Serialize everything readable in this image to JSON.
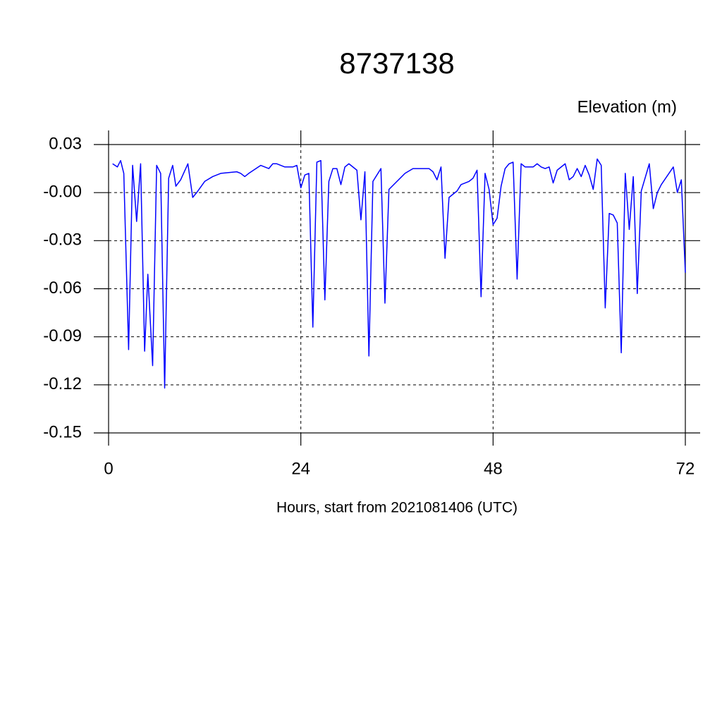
{
  "chart_data": {
    "type": "line",
    "title": "8737138",
    "subtitle": "Elevation (m)",
    "x_label": "Hours, start from 2021081406 (UTC)",
    "xlim": [
      0,
      72
    ],
    "ylim": [
      -0.15,
      0.03
    ],
    "xticks": [
      0,
      24,
      48,
      72
    ],
    "yticks": [
      0.03,
      {
        "value": 0,
        "label": "-0.00"
      },
      -0.03,
      -0.06,
      -0.09,
      -0.12,
      -0.15
    ],
    "grid": true,
    "x": [
      0.5,
      1.1,
      1.5,
      1.9,
      2.5,
      3.0,
      3.5,
      4.0,
      4.5,
      4.9,
      5.5,
      6.0,
      6.5,
      7.0,
      7.5,
      8.0,
      8.4,
      9.0,
      9.9,
      10.5,
      11.0,
      12.0,
      13.0,
      14.0,
      16.0,
      16.5,
      17.0,
      17.5,
      19.0,
      20.0,
      20.5,
      21.0,
      22.0,
      23.0,
      23.5,
      24.0,
      24.5,
      25.0,
      25.5,
      26.0,
      26.5,
      27.0,
      27.5,
      28.0,
      28.5,
      29.0,
      29.5,
      30.0,
      31.0,
      31.5,
      32.0,
      32.5,
      33.0,
      34.0,
      34.5,
      35.0,
      36.0,
      37.0,
      38.0,
      40.0,
      40.5,
      41.0,
      41.5,
      42.0,
      42.5,
      43.5,
      44.0,
      45.0,
      45.5,
      46.0,
      46.5,
      47.0,
      47.5,
      48.0,
      48.5,
      49.0,
      49.5,
      50.0,
      50.5,
      51.0,
      51.5,
      52.0,
      53.0,
      53.5,
      54.0,
      54.5,
      55.0,
      55.5,
      56.0,
      57.0,
      57.5,
      58.0,
      58.5,
      59.0,
      59.5,
      60.0,
      60.5,
      61.0,
      61.5,
      62.0,
      62.5,
      63.0,
      63.5,
      64.0,
      64.5,
      65.0,
      65.5,
      66.0,
      66.5,
      67.5,
      68.0,
      68.5,
      69.0,
      70.5,
      71.0,
      71.5,
      72.0
    ],
    "series": [
      {
        "color": "#0000ff",
        "values": [
          0.018,
          0.016,
          0.02,
          0.012,
          -0.098,
          0.017,
          -0.018,
          0.018,
          -0.099,
          -0.051,
          -0.108,
          0.017,
          0.012,
          -0.122,
          0.009,
          0.017,
          0.004,
          0.008,
          0.018,
          -0.003,
          0.0,
          0.007,
          0.01,
          0.012,
          0.013,
          0.012,
          0.01,
          0.012,
          0.017,
          0.015,
          0.018,
          0.018,
          0.016,
          0.016,
          0.017,
          0.003,
          0.011,
          0.012,
          -0.084,
          0.019,
          0.02,
          -0.067,
          0.007,
          0.015,
          0.015,
          0.005,
          0.016,
          0.018,
          0.014,
          -0.017,
          0.013,
          -0.102,
          0.007,
          0.015,
          -0.069,
          0.002,
          0.007,
          0.012,
          0.015,
          0.015,
          0.013,
          0.008,
          0.016,
          -0.041,
          -0.003,
          0.001,
          0.005,
          0.007,
          0.009,
          0.014,
          -0.065,
          0.012,
          0.002,
          -0.02,
          -0.016,
          0.004,
          0.015,
          0.018,
          0.019,
          -0.054,
          0.018,
          0.016,
          0.016,
          0.018,
          0.016,
          0.015,
          0.016,
          0.006,
          0.014,
          0.018,
          0.008,
          0.01,
          0.015,
          0.01,
          0.017,
          0.011,
          0.002,
          0.021,
          0.017,
          -0.072,
          -0.013,
          -0.014,
          -0.019,
          -0.1,
          0.012,
          -0.023,
          0.01,
          -0.063,
          0.001,
          0.018,
          -0.01,
          0.0,
          0.005,
          0.016,
          0.0,
          0.008,
          -0.05
        ]
      }
    ]
  }
}
